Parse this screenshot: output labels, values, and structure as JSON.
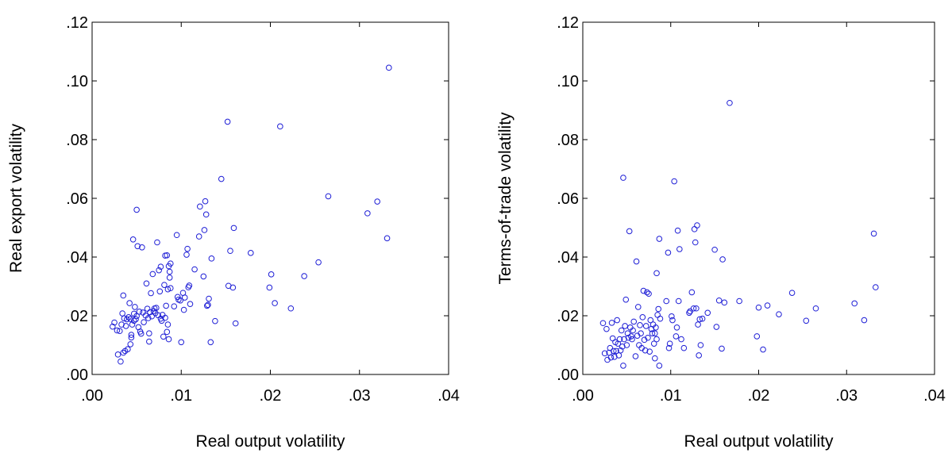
{
  "colors": {
    "marker": "#1F1FD6",
    "axis": "#000000",
    "background": "#FFFFFF"
  },
  "chart_data": [
    {
      "type": "scatter",
      "title": "",
      "xlabel": "Real output volatility",
      "ylabel": "Real export volatility",
      "xlim": [
        0,
        0.04
      ],
      "ylim": [
        0,
        0.12
      ],
      "xticks": [
        0,
        0.01,
        0.02,
        0.03,
        0.04
      ],
      "yticks": [
        0,
        0.02,
        0.04,
        0.06,
        0.08,
        0.1,
        0.12
      ],
      "xtick_labels": [
        ".00",
        ".01",
        ".02",
        ".03",
        ".04"
      ],
      "ytick_labels": [
        ".00",
        ".02",
        ".04",
        ".06",
        ".08",
        ".10",
        ".12"
      ],
      "grid": false,
      "legend": "none",
      "marker": "open-circle",
      "points": [
        [
          0.0023,
          0.0163
        ],
        [
          0.0025,
          0.0177
        ],
        [
          0.0028,
          0.015
        ],
        [
          0.0029,
          0.0068
        ],
        [
          0.0031,
          0.0148
        ],
        [
          0.0032,
          0.0044
        ],
        [
          0.0033,
          0.017
        ],
        [
          0.0034,
          0.0208
        ],
        [
          0.0035,
          0.0074
        ],
        [
          0.0035,
          0.0269
        ],
        [
          0.0036,
          0.0191
        ],
        [
          0.0037,
          0.008
        ],
        [
          0.0038,
          0.0165
        ],
        [
          0.0039,
          0.0188
        ],
        [
          0.004,
          0.0086
        ],
        [
          0.0041,
          0.0195
        ],
        [
          0.0042,
          0.0243
        ],
        [
          0.0043,
          0.0103
        ],
        [
          0.0043,
          0.0189
        ],
        [
          0.0044,
          0.0126
        ],
        [
          0.0044,
          0.0135
        ],
        [
          0.0045,
          0.017
        ],
        [
          0.0046,
          0.046
        ],
        [
          0.0047,
          0.0207
        ],
        [
          0.0047,
          0.0183
        ],
        [
          0.0048,
          0.023
        ],
        [
          0.0049,
          0.0188
        ],
        [
          0.005,
          0.0561
        ],
        [
          0.005,
          0.0199
        ],
        [
          0.0051,
          0.0437
        ],
        [
          0.0052,
          0.0161
        ],
        [
          0.0053,
          0.0214
        ],
        [
          0.0054,
          0.0146
        ],
        [
          0.0055,
          0.0139
        ],
        [
          0.0056,
          0.0433
        ],
        [
          0.0057,
          0.0211
        ],
        [
          0.0058,
          0.0178
        ],
        [
          0.006,
          0.0201
        ],
        [
          0.0061,
          0.031
        ],
        [
          0.0062,
          0.0224
        ],
        [
          0.0063,
          0.0192
        ],
        [
          0.0064,
          0.0112
        ],
        [
          0.0064,
          0.014
        ],
        [
          0.0065,
          0.0212
        ],
        [
          0.0066,
          0.0277
        ],
        [
          0.0067,
          0.0198
        ],
        [
          0.0068,
          0.0342
        ],
        [
          0.0069,
          0.0216
        ],
        [
          0.007,
          0.0225
        ],
        [
          0.0071,
          0.0209
        ],
        [
          0.0072,
          0.0227
        ],
        [
          0.0073,
          0.045
        ],
        [
          0.0074,
          0.0202
        ],
        [
          0.0075,
          0.0355
        ],
        [
          0.0076,
          0.0283
        ],
        [
          0.0077,
          0.0367
        ],
        [
          0.0077,
          0.019
        ],
        [
          0.0078,
          0.0183
        ],
        [
          0.0079,
          0.0203
        ],
        [
          0.008,
          0.0129
        ],
        [
          0.0081,
          0.0305
        ],
        [
          0.0082,
          0.0405
        ],
        [
          0.0082,
          0.0193
        ],
        [
          0.0083,
          0.0234
        ],
        [
          0.0084,
          0.0406
        ],
        [
          0.0084,
          0.0145
        ],
        [
          0.0085,
          0.017
        ],
        [
          0.0085,
          0.029
        ],
        [
          0.0086,
          0.012
        ],
        [
          0.0086,
          0.0369
        ],
        [
          0.0087,
          0.035
        ],
        [
          0.0087,
          0.033
        ],
        [
          0.0088,
          0.0378
        ],
        [
          0.0088,
          0.0294
        ],
        [
          0.0092,
          0.0232
        ],
        [
          0.0095,
          0.0475
        ],
        [
          0.0096,
          0.0264
        ],
        [
          0.0097,
          0.0255
        ],
        [
          0.0099,
          0.0252
        ],
        [
          0.01,
          0.011
        ],
        [
          0.0102,
          0.0278
        ],
        [
          0.0103,
          0.022
        ],
        [
          0.0104,
          0.0262
        ],
        [
          0.0106,
          0.0408
        ],
        [
          0.0107,
          0.0428
        ],
        [
          0.0108,
          0.0297
        ],
        [
          0.0109,
          0.0303
        ],
        [
          0.011,
          0.024
        ],
        [
          0.0115,
          0.0358
        ],
        [
          0.012,
          0.047
        ],
        [
          0.0121,
          0.0572
        ],
        [
          0.0125,
          0.0334
        ],
        [
          0.0126,
          0.0492
        ],
        [
          0.0127,
          0.059
        ],
        [
          0.0128,
          0.0545
        ],
        [
          0.0129,
          0.0234
        ],
        [
          0.013,
          0.0237
        ],
        [
          0.0131,
          0.0258
        ],
        [
          0.0133,
          0.011
        ],
        [
          0.0134,
          0.0395
        ],
        [
          0.0138,
          0.0182
        ],
        [
          0.0145,
          0.0666
        ],
        [
          0.0152,
          0.0861
        ],
        [
          0.0153,
          0.0302
        ],
        [
          0.0155,
          0.0421
        ],
        [
          0.0158,
          0.0296
        ],
        [
          0.0159,
          0.0499
        ],
        [
          0.0161,
          0.0174
        ],
        [
          0.0178,
          0.0414
        ],
        [
          0.0199,
          0.0296
        ],
        [
          0.0201,
          0.0341
        ],
        [
          0.0205,
          0.0243
        ],
        [
          0.0211,
          0.0845
        ],
        [
          0.0223,
          0.0225
        ],
        [
          0.0238,
          0.0335
        ],
        [
          0.0254,
          0.0382
        ],
        [
          0.0265,
          0.0607
        ],
        [
          0.0309,
          0.0549
        ],
        [
          0.032,
          0.0589
        ],
        [
          0.0331,
          0.0464
        ],
        [
          0.0333,
          0.1045
        ]
      ]
    },
    {
      "type": "scatter",
      "title": "",
      "xlabel": "Real output volatility",
      "ylabel": "Terms-of-trade volatility",
      "xlim": [
        0,
        0.04
      ],
      "ylim": [
        0,
        0.12
      ],
      "xticks": [
        0,
        0.01,
        0.02,
        0.03,
        0.04
      ],
      "yticks": [
        0,
        0.02,
        0.04,
        0.06,
        0.08,
        0.1,
        0.12
      ],
      "xtick_labels": [
        ".00",
        ".01",
        ".02",
        ".03",
        ".04"
      ],
      "ytick_labels": [
        ".00",
        ".02",
        ".04",
        ".06",
        ".08",
        ".10",
        ".12"
      ],
      "grid": false,
      "legend": "none",
      "marker": "open-circle",
      "points": [
        [
          0.0023,
          0.0175
        ],
        [
          0.0025,
          0.0072
        ],
        [
          0.0027,
          0.0155
        ],
        [
          0.0028,
          0.005
        ],
        [
          0.003,
          0.0074
        ],
        [
          0.0031,
          0.009
        ],
        [
          0.0032,
          0.0058
        ],
        [
          0.0033,
          0.0176
        ],
        [
          0.0034,
          0.0123
        ],
        [
          0.0035,
          0.008
        ],
        [
          0.0036,
          0.006
        ],
        [
          0.0037,
          0.011
        ],
        [
          0.0038,
          0.008
        ],
        [
          0.0039,
          0.0185
        ],
        [
          0.004,
          0.0105
        ],
        [
          0.0041,
          0.0065
        ],
        [
          0.0042,
          0.012
        ],
        [
          0.0043,
          0.0082
        ],
        [
          0.0044,
          0.015
        ],
        [
          0.0045,
          0.0095
        ],
        [
          0.0046,
          0.067
        ],
        [
          0.0046,
          0.003
        ],
        [
          0.0047,
          0.012
        ],
        [
          0.0048,
          0.0165
        ],
        [
          0.0049,
          0.0255
        ],
        [
          0.005,
          0.01
        ],
        [
          0.0051,
          0.014
        ],
        [
          0.0052,
          0.0125
        ],
        [
          0.0053,
          0.0488
        ],
        [
          0.0054,
          0.016
        ],
        [
          0.0055,
          0.013
        ],
        [
          0.0056,
          0.012
        ],
        [
          0.0057,
          0.015
        ],
        [
          0.0058,
          0.018
        ],
        [
          0.006,
          0.0062
        ],
        [
          0.0061,
          0.0385
        ],
        [
          0.0062,
          0.0132
        ],
        [
          0.0063,
          0.023
        ],
        [
          0.0064,
          0.01
        ],
        [
          0.0065,
          0.0168
        ],
        [
          0.0066,
          0.014
        ],
        [
          0.0067,
          0.009
        ],
        [
          0.0068,
          0.0195
        ],
        [
          0.0069,
          0.0285
        ],
        [
          0.007,
          0.0118
        ],
        [
          0.0071,
          0.0082
        ],
        [
          0.0072,
          0.0165
        ],
        [
          0.0073,
          0.028
        ],
        [
          0.0074,
          0.0125
        ],
        [
          0.0075,
          0.0275
        ],
        [
          0.0076,
          0.0078
        ],
        [
          0.0077,
          0.0185
        ],
        [
          0.0078,
          0.0155
        ],
        [
          0.0079,
          0.014
        ],
        [
          0.008,
          0.017
        ],
        [
          0.0081,
          0.0105
        ],
        [
          0.0082,
          0.0055
        ],
        [
          0.0082,
          0.014
        ],
        [
          0.0083,
          0.016
        ],
        [
          0.0084,
          0.0345
        ],
        [
          0.0084,
          0.012
        ],
        [
          0.0085,
          0.0203
        ],
        [
          0.0086,
          0.0223
        ],
        [
          0.0087,
          0.003
        ],
        [
          0.0087,
          0.0462
        ],
        [
          0.0088,
          0.019
        ],
        [
          0.0095,
          0.025
        ],
        [
          0.0097,
          0.0415
        ],
        [
          0.0098,
          0.009
        ],
        [
          0.0099,
          0.0105
        ],
        [
          0.0101,
          0.0198
        ],
        [
          0.0102,
          0.0185
        ],
        [
          0.0104,
          0.0658
        ],
        [
          0.0106,
          0.013
        ],
        [
          0.0107,
          0.016
        ],
        [
          0.0108,
          0.049
        ],
        [
          0.0109,
          0.025
        ],
        [
          0.011,
          0.0427
        ],
        [
          0.0112,
          0.012
        ],
        [
          0.0115,
          0.009
        ],
        [
          0.0121,
          0.021
        ],
        [
          0.0122,
          0.0215
        ],
        [
          0.0124,
          0.028
        ],
        [
          0.0126,
          0.0225
        ],
        [
          0.0127,
          0.0495
        ],
        [
          0.0128,
          0.045
        ],
        [
          0.0129,
          0.0225
        ],
        [
          0.013,
          0.0508
        ],
        [
          0.0131,
          0.017
        ],
        [
          0.0132,
          0.0065
        ],
        [
          0.0133,
          0.0188
        ],
        [
          0.0134,
          0.01
        ],
        [
          0.0136,
          0.019
        ],
        [
          0.0142,
          0.021
        ],
        [
          0.015,
          0.0425
        ],
        [
          0.0152,
          0.0162
        ],
        [
          0.0155,
          0.0252
        ],
        [
          0.0158,
          0.0088
        ],
        [
          0.0159,
          0.0392
        ],
        [
          0.0161,
          0.0245
        ],
        [
          0.0167,
          0.0925
        ],
        [
          0.0178,
          0.025
        ],
        [
          0.0198,
          0.013
        ],
        [
          0.02,
          0.0228
        ],
        [
          0.0205,
          0.0085
        ],
        [
          0.021,
          0.0235
        ],
        [
          0.0223,
          0.0205
        ],
        [
          0.0238,
          0.0278
        ],
        [
          0.0254,
          0.0183
        ],
        [
          0.0265,
          0.0225
        ],
        [
          0.0309,
          0.0242
        ],
        [
          0.032,
          0.0185
        ],
        [
          0.0331,
          0.048
        ],
        [
          0.0333,
          0.0297
        ]
      ]
    }
  ]
}
